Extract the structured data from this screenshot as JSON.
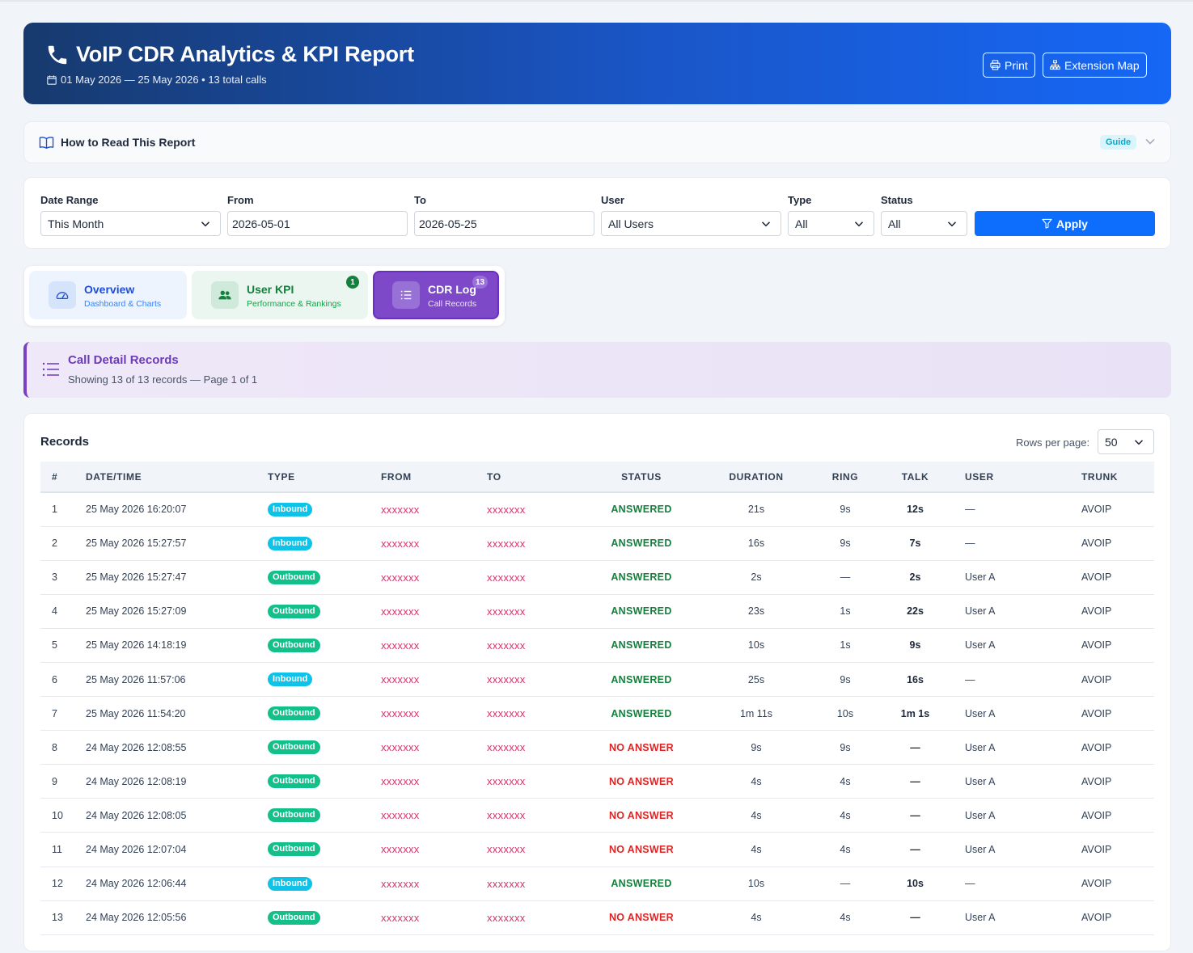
{
  "header": {
    "title": "VoIP CDR Analytics & KPI Report",
    "subtitle": "01 May 2026 — 25 May 2026 • 13 total calls",
    "print_label": "Print",
    "extension_map_label": "Extension Map"
  },
  "guide": {
    "title": "How to Read This Report",
    "badge": "Guide"
  },
  "filters": {
    "date_range": {
      "label": "Date Range",
      "value": "This Month"
    },
    "from": {
      "label": "From",
      "value": "2026-05-01"
    },
    "to": {
      "label": "To",
      "value": "2026-05-25"
    },
    "user": {
      "label": "User",
      "value": "All Users"
    },
    "type": {
      "label": "Type",
      "value": "All"
    },
    "status": {
      "label": "Status",
      "value": "All"
    },
    "apply_label": "Apply"
  },
  "tabs": [
    {
      "title": "Overview",
      "subtitle": "Dashboard & Charts",
      "count": ""
    },
    {
      "title": "User KPI",
      "subtitle": "Performance & Rankings",
      "count": "1"
    },
    {
      "title": "CDR Log",
      "subtitle": "Call Records",
      "count": "13"
    }
  ],
  "section": {
    "title": "Call Detail Records",
    "subtitle": "Showing 13 of 13 records — Page 1 of 1"
  },
  "records": {
    "title": "Records",
    "rows_per_page_label": "Rows per page:",
    "rows_per_page_value": "50",
    "columns": [
      "#",
      "DATE/TIME",
      "TYPE",
      "FROM",
      "TO",
      "STATUS",
      "DURATION",
      "RING",
      "TALK",
      "USER",
      "TRUNK"
    ],
    "rows": [
      {
        "n": "1",
        "dt": "25 May 2026 16:20:07",
        "type": "Inbound",
        "from": "xxxxxxx",
        "to": "xxxxxxx",
        "status": "ANSWERED",
        "dur": "21s",
        "ring": "9s",
        "talk": "12s",
        "user": "—",
        "trunk": "AVOIP"
      },
      {
        "n": "2",
        "dt": "25 May 2026 15:27:57",
        "type": "Inbound",
        "from": "xxxxxxx",
        "to": "xxxxxxx",
        "status": "ANSWERED",
        "dur": "16s",
        "ring": "9s",
        "talk": "7s",
        "user": "—",
        "trunk": "AVOIP"
      },
      {
        "n": "3",
        "dt": "25 May 2026 15:27:47",
        "type": "Outbound",
        "from": "xxxxxxx",
        "to": "xxxxxxx",
        "status": "ANSWERED",
        "dur": "2s",
        "ring": "—",
        "talk": "2s",
        "user": "User A",
        "trunk": "AVOIP"
      },
      {
        "n": "4",
        "dt": "25 May 2026 15:27:09",
        "type": "Outbound",
        "from": "xxxxxxx",
        "to": "xxxxxxx",
        "status": "ANSWERED",
        "dur": "23s",
        "ring": "1s",
        "talk": "22s",
        "user": "User A",
        "trunk": "AVOIP"
      },
      {
        "n": "5",
        "dt": "25 May 2026 14:18:19",
        "type": "Outbound",
        "from": "xxxxxxx",
        "to": "xxxxxxx",
        "status": "ANSWERED",
        "dur": "10s",
        "ring": "1s",
        "talk": "9s",
        "user": "User A",
        "trunk": "AVOIP"
      },
      {
        "n": "6",
        "dt": "25 May 2026 11:57:06",
        "type": "Inbound",
        "from": "xxxxxxx",
        "to": "xxxxxxx",
        "status": "ANSWERED",
        "dur": "25s",
        "ring": "9s",
        "talk": "16s",
        "user": "—",
        "trunk": "AVOIP"
      },
      {
        "n": "7",
        "dt": "25 May 2026 11:54:20",
        "type": "Outbound",
        "from": "xxxxxxx",
        "to": "xxxxxxx",
        "status": "ANSWERED",
        "dur": "1m 11s",
        "ring": "10s",
        "talk": "1m 1s",
        "user": "User A",
        "trunk": "AVOIP"
      },
      {
        "n": "8",
        "dt": "24 May 2026 12:08:55",
        "type": "Outbound",
        "from": "xxxxxxx",
        "to": "xxxxxxx",
        "status": "NO ANSWER",
        "dur": "9s",
        "ring": "9s",
        "talk": "—",
        "user": "User A",
        "trunk": "AVOIP"
      },
      {
        "n": "9",
        "dt": "24 May 2026 12:08:19",
        "type": "Outbound",
        "from": "xxxxxxx",
        "to": "xxxxxxx",
        "status": "NO ANSWER",
        "dur": "4s",
        "ring": "4s",
        "talk": "—",
        "user": "User A",
        "trunk": "AVOIP"
      },
      {
        "n": "10",
        "dt": "24 May 2026 12:08:05",
        "type": "Outbound",
        "from": "xxxxxxx",
        "to": "xxxxxxx",
        "status": "NO ANSWER",
        "dur": "4s",
        "ring": "4s",
        "talk": "—",
        "user": "User A",
        "trunk": "AVOIP"
      },
      {
        "n": "11",
        "dt": "24 May 2026 12:07:04",
        "type": "Outbound",
        "from": "xxxxxxx",
        "to": "xxxxxxx",
        "status": "NO ANSWER",
        "dur": "4s",
        "ring": "4s",
        "talk": "—",
        "user": "User A",
        "trunk": "AVOIP"
      },
      {
        "n": "12",
        "dt": "24 May 2026 12:06:44",
        "type": "Inbound",
        "from": "xxxxxxx",
        "to": "xxxxxxx",
        "status": "ANSWERED",
        "dur": "10s",
        "ring": "—",
        "talk": "10s",
        "user": "—",
        "trunk": "AVOIP"
      },
      {
        "n": "13",
        "dt": "24 May 2026 12:05:56",
        "type": "Outbound",
        "from": "xxxxxxx",
        "to": "xxxxxxx",
        "status": "NO ANSWER",
        "dur": "4s",
        "ring": "4s",
        "talk": "—",
        "user": "User A",
        "trunk": "AVOIP"
      }
    ]
  },
  "colors": {
    "inbound": "#0ec2e8",
    "outbound": "#14c08a",
    "answered": "#15803d",
    "no_answer": "#dc2626",
    "accent": "#0d6efd",
    "cdr_tab": "#7d49c9"
  },
  "icons": {
    "header": "phone-icon",
    "subtitle": "calendar-icon",
    "print": "printer-icon",
    "extension_map": "sitemap-icon",
    "guide": "book-icon",
    "apply": "filter-icon",
    "overview": "speedometer-icon",
    "user_kpi": "users-icon",
    "cdr_log": "list-icon"
  }
}
